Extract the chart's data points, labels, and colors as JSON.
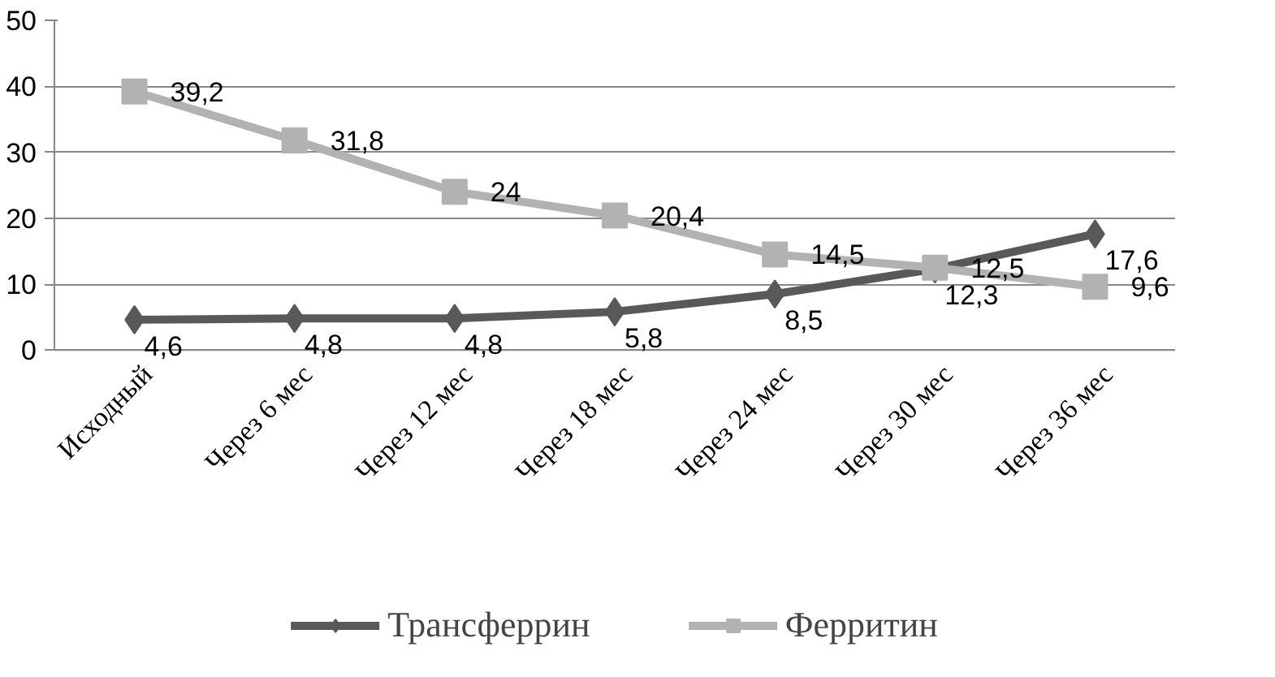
{
  "chart_data": {
    "type": "line",
    "categories": [
      "Исходный",
      "Через 6 мес",
      "Через 12 мес",
      "Через 18 мес",
      "Через 24 мес",
      "Через 30 мес",
      "Через 36 мес"
    ],
    "series": [
      {
        "name": "Трансферрин",
        "color": "#595959",
        "marker": "diamond",
        "values": [
          4.6,
          4.8,
          4.8,
          5.8,
          8.5,
          12.3,
          17.6
        ],
        "value_labels": [
          "4,6",
          "4,8",
          "4,8",
          "5,8",
          "8,5",
          "12,3",
          "17,6"
        ]
      },
      {
        "name": "Ферритин",
        "color": "#b2b2b2",
        "marker": "square",
        "values": [
          39.2,
          31.8,
          24,
          20.4,
          14.5,
          12.5,
          9.6
        ],
        "value_labels": [
          "39,2",
          "31,8",
          "24",
          "20,4",
          "14,5",
          "12,5",
          "9,6"
        ]
      }
    ],
    "ylim": [
      0,
      50
    ],
    "yticks": [
      0,
      10,
      20,
      30,
      40,
      50
    ],
    "grid": "y",
    "legend": "bottom",
    "data_labels": true
  }
}
